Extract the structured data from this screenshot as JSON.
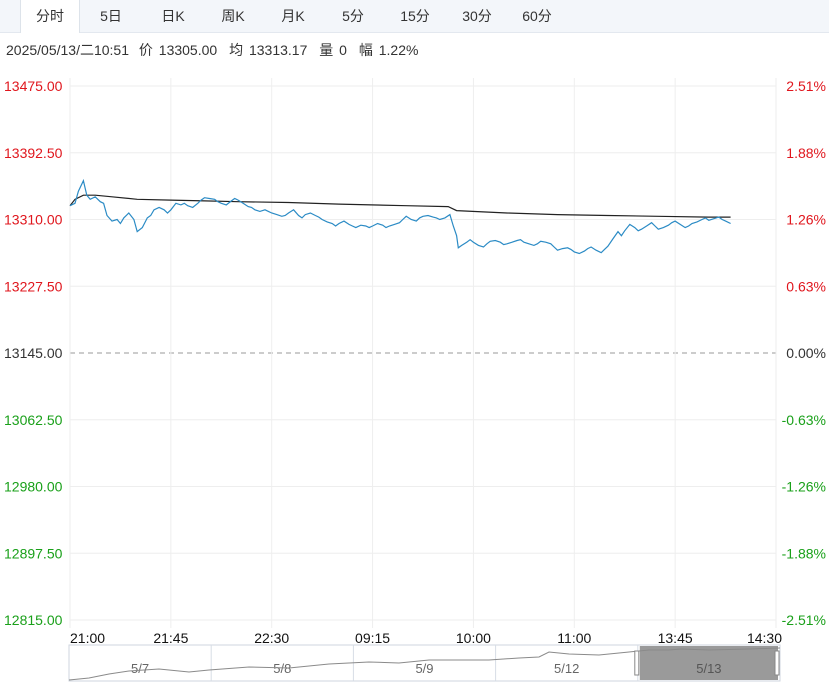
{
  "tabs": [
    {
      "label": "分时",
      "active": true
    },
    {
      "label": "5日",
      "active": false
    },
    {
      "label": "日K",
      "active": false
    },
    {
      "label": "周K",
      "active": false
    },
    {
      "label": "月K",
      "active": false
    },
    {
      "label": "5分",
      "active": false
    },
    {
      "label": "15分",
      "active": false
    },
    {
      "label": "30分",
      "active": false
    },
    {
      "label": "60分",
      "active": false
    }
  ],
  "info": {
    "datetime": "2025/05/13/二10:51",
    "price_label": "价",
    "price": "13305.00",
    "avg_label": "均",
    "avg": "13313.17",
    "volume_label": "量",
    "volume": "0",
    "range_label": "幅",
    "range": "1.22%"
  },
  "colors": {
    "up": "#e0161d",
    "down": "#1aa01a",
    "neutral": "#333333",
    "price_line": "#2b8bc5",
    "avg_line": "#222222",
    "grid": "#eeeeee"
  },
  "chart_data": {
    "type": "line",
    "prev_close": 13145.0,
    "y_ticks": [
      {
        "label": "13475.00",
        "pct": "2.51%",
        "value": 13475.0,
        "side": "up"
      },
      {
        "label": "13392.50",
        "pct": "1.88%",
        "value": 13392.5,
        "side": "up"
      },
      {
        "label": "13310.00",
        "pct": "1.26%",
        "value": 13310.0,
        "side": "up"
      },
      {
        "label": "13227.50",
        "pct": "0.63%",
        "value": 13227.5,
        "side": "up"
      },
      {
        "label": "13145.00",
        "pct": "0.00%",
        "value": 13145.0,
        "side": "neutral"
      },
      {
        "label": "13062.50",
        "pct": "-0.63%",
        "value": 13062.5,
        "side": "down"
      },
      {
        "label": "12980.00",
        "pct": "-1.26%",
        "value": 12980.0,
        "side": "down"
      },
      {
        "label": "12897.50",
        "pct": "-1.88%",
        "value": 12897.5,
        "side": "down"
      },
      {
        "label": "12815.00",
        "pct": "-2.51%",
        "value": 12815.0,
        "side": "down"
      }
    ],
    "ylim": [
      12815.0,
      13475.0
    ],
    "x_ticks": [
      "21:00",
      "21:45",
      "22:30",
      "09:15",
      "10:00",
      "11:00",
      "13:45",
      "14:30"
    ],
    "price_series": {
      "slot_count": 420,
      "points": [
        [
          0,
          13327
        ],
        [
          3,
          13330
        ],
        [
          5,
          13345
        ],
        [
          8,
          13358
        ],
        [
          10,
          13340
        ],
        [
          12,
          13335
        ],
        [
          15,
          13338
        ],
        [
          18,
          13332
        ],
        [
          20,
          13330
        ],
        [
          22,
          13315
        ],
        [
          25,
          13308
        ],
        [
          28,
          13310
        ],
        [
          30,
          13305
        ],
        [
          32,
          13312
        ],
        [
          35,
          13318
        ],
        [
          38,
          13310
        ],
        [
          40,
          13295
        ],
        [
          43,
          13300
        ],
        [
          46,
          13312
        ],
        [
          48,
          13315
        ],
        [
          50,
          13322
        ],
        [
          53,
          13325
        ],
        [
          56,
          13322
        ],
        [
          58,
          13318
        ],
        [
          60,
          13322
        ],
        [
          63,
          13330
        ],
        [
          66,
          13328
        ],
        [
          68,
          13330
        ],
        [
          70,
          13327
        ],
        [
          73,
          13325
        ],
        [
          76,
          13330
        ],
        [
          78,
          13334
        ],
        [
          80,
          13337
        ],
        [
          83,
          13336
        ],
        [
          86,
          13335
        ],
        [
          88,
          13332
        ],
        [
          90,
          13330
        ],
        [
          93,
          13328
        ],
        [
          96,
          13333
        ],
        [
          98,
          13336
        ],
        [
          100,
          13334
        ],
        [
          103,
          13330
        ],
        [
          106,
          13326
        ],
        [
          108,
          13325
        ],
        [
          110,
          13322
        ],
        [
          113,
          13320
        ],
        [
          116,
          13322
        ],
        [
          118,
          13320
        ],
        [
          120,
          13318
        ],
        [
          123,
          13316
        ],
        [
          126,
          13314
        ],
        [
          128,
          13315
        ],
        [
          130,
          13318
        ],
        [
          133,
          13322
        ],
        [
          136,
          13315
        ],
        [
          138,
          13312
        ],
        [
          140,
          13316
        ],
        [
          143,
          13318
        ],
        [
          146,
          13315
        ],
        [
          148,
          13313
        ],
        [
          150,
          13310
        ],
        [
          153,
          13307
        ],
        [
          156,
          13305
        ],
        [
          158,
          13302
        ],
        [
          160,
          13305
        ],
        [
          163,
          13308
        ],
        [
          166,
          13304
        ],
        [
          168,
          13302
        ],
        [
          170,
          13300
        ],
        [
          173,
          13303
        ],
        [
          176,
          13302
        ],
        [
          178,
          13300
        ],
        [
          180,
          13302
        ],
        [
          183,
          13305
        ],
        [
          186,
          13303
        ],
        [
          188,
          13300
        ],
        [
          190,
          13302
        ],
        [
          193,
          13304
        ],
        [
          196,
          13306
        ],
        [
          198,
          13310
        ],
        [
          200,
          13314
        ],
        [
          203,
          13310
        ],
        [
          206,
          13308
        ],
        [
          208,
          13312
        ],
        [
          210,
          13314
        ],
        [
          213,
          13315
        ],
        [
          216,
          13313
        ],
        [
          218,
          13312
        ],
        [
          220,
          13310
        ],
        [
          223,
          13312
        ],
        [
          226,
          13316
        ],
        [
          228,
          13302
        ],
        [
          230,
          13290
        ],
        [
          231,
          13275
        ],
        [
          233,
          13278
        ],
        [
          236,
          13282
        ],
        [
          238,
          13285
        ],
        [
          240,
          13282
        ],
        [
          243,
          13278
        ],
        [
          246,
          13276
        ],
        [
          248,
          13280
        ],
        [
          250,
          13283
        ],
        [
          253,
          13284
        ],
        [
          256,
          13282
        ],
        [
          258,
          13279
        ],
        [
          260,
          13280
        ],
        [
          263,
          13282
        ],
        [
          266,
          13284
        ],
        [
          268,
          13285
        ],
        [
          270,
          13282
        ],
        [
          273,
          13280
        ],
        [
          276,
          13278
        ],
        [
          278,
          13280
        ],
        [
          280,
          13283
        ],
        [
          283,
          13282
        ],
        [
          286,
          13280
        ],
        [
          288,
          13276
        ],
        [
          290,
          13272
        ],
        [
          293,
          13274
        ],
        [
          296,
          13275
        ],
        [
          298,
          13273
        ],
        [
          300,
          13270
        ],
        [
          303,
          13268
        ],
        [
          306,
          13271
        ],
        [
          308,
          13274
        ],
        [
          310,
          13276
        ],
        [
          313,
          13272
        ],
        [
          316,
          13269
        ],
        [
          318,
          13273
        ],
        [
          320,
          13277
        ],
        [
          323,
          13286
        ],
        [
          326,
          13295
        ],
        [
          328,
          13290
        ],
        [
          330,
          13296
        ],
        [
          333,
          13304
        ],
        [
          336,
          13300
        ],
        [
          338,
          13296
        ],
        [
          340,
          13298
        ],
        [
          343,
          13302
        ],
        [
          346,
          13306
        ],
        [
          348,
          13302
        ],
        [
          350,
          13298
        ],
        [
          353,
          13300
        ],
        [
          356,
          13303
        ],
        [
          358,
          13306
        ],
        [
          360,
          13308
        ],
        [
          363,
          13304
        ],
        [
          366,
          13300
        ],
        [
          368,
          13302
        ],
        [
          370,
          13305
        ],
        [
          373,
          13307
        ],
        [
          376,
          13310
        ],
        [
          378,
          13312
        ],
        [
          380,
          13309
        ],
        [
          383,
          13311
        ],
        [
          386,
          13313
        ],
        [
          388,
          13310
        ],
        [
          390,
          13308
        ],
        [
          393,
          13305
        ]
      ]
    },
    "avg_series": {
      "slot_count": 420,
      "points": [
        [
          0,
          13327
        ],
        [
          3,
          13335
        ],
        [
          8,
          13340
        ],
        [
          15,
          13340
        ],
        [
          25,
          13338
        ],
        [
          40,
          13335
        ],
        [
          60,
          13334
        ],
        [
          80,
          13333
        ],
        [
          100,
          13332
        ],
        [
          130,
          13331
        ],
        [
          160,
          13329
        ],
        [
          200,
          13327
        ],
        [
          225,
          13326
        ],
        [
          230,
          13321
        ],
        [
          260,
          13318
        ],
        [
          290,
          13316
        ],
        [
          320,
          13315
        ],
        [
          350,
          13314
        ],
        [
          380,
          13313
        ],
        [
          393,
          13313
        ]
      ]
    }
  },
  "navigator": {
    "labels": [
      "5/7",
      "5/8",
      "5/9",
      "5/12",
      "5/13"
    ]
  }
}
